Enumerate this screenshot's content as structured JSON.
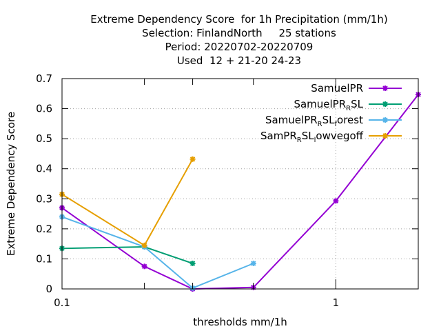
{
  "chart_data": {
    "type": "line",
    "title_lines": [
      "Extreme Dependency Score  for 1h Precipitation (mm/1h)",
      "Selection: FinlandNorth     25 stations",
      "Period: 20220702-20220709",
      "Used  12 + 21-20 24-23"
    ],
    "xlabel": "thresholds mm/1h",
    "ylabel": "Extreme Dependency Score",
    "x_scale": "log",
    "xlim": [
      0.1,
      2.0
    ],
    "ylim": [
      0,
      0.7
    ],
    "x_ticks": [
      {
        "value": 0.1,
        "label": "0.1"
      },
      {
        "value": 1,
        "label": "1"
      }
    ],
    "x_minor_ticks": [
      0.2,
      0.3,
      0.5,
      2.0
    ],
    "y_ticks": [
      {
        "value": 0,
        "label": "0"
      },
      {
        "value": 0.1,
        "label": "0.1"
      },
      {
        "value": 0.2,
        "label": "0.2"
      },
      {
        "value": 0.3,
        "label": "0.3"
      },
      {
        "value": 0.4,
        "label": "0.4"
      },
      {
        "value": 0.5,
        "label": "0.5"
      },
      {
        "value": 0.6,
        "label": "0.6"
      },
      {
        "value": 0.7,
        "label": "0.7"
      }
    ],
    "grid": true,
    "legend_position": "top-right",
    "series": [
      {
        "name": "SamuelPR",
        "label_parts": [
          [
            "SamuelPR",
            ""
          ]
        ],
        "color": "#9400d3",
        "x": [
          0.1,
          0.2,
          0.3,
          0.5,
          1.0,
          2.0
        ],
        "y": [
          0.27,
          0.075,
          0.0,
          0.005,
          0.293,
          0.647
        ]
      },
      {
        "name": "SamuelPR_RSL",
        "label_parts": [
          [
            "SamuelPR",
            ""
          ],
          [
            "R",
            "sub"
          ],
          [
            "SL",
            ""
          ]
        ],
        "color": "#009e73",
        "x": [
          0.1,
          0.2,
          0.3
        ],
        "y": [
          0.135,
          0.14,
          0.085
        ]
      },
      {
        "name": "SamuelPR_RSL_forest",
        "label_parts": [
          [
            "SamuelPR",
            ""
          ],
          [
            "R",
            "sub"
          ],
          [
            "SL",
            ""
          ],
          [
            "f",
            "sub"
          ],
          [
            "orest",
            ""
          ]
        ],
        "color": "#56b4e9",
        "x": [
          0.1,
          0.2,
          0.3,
          0.5
        ],
        "y": [
          0.24,
          0.14,
          0.003,
          0.085
        ]
      },
      {
        "name": "SamPR_RSL_lowvegoff",
        "label_parts": [
          [
            "SamPR",
            ""
          ],
          [
            "R",
            "sub"
          ],
          [
            "SL",
            ""
          ],
          [
            "l",
            "sub"
          ],
          [
            "owvegoff",
            ""
          ]
        ],
        "color": "#e69f00",
        "x": [
          0.1,
          0.2,
          0.3
        ],
        "y": [
          0.315,
          0.145,
          0.432
        ]
      }
    ]
  }
}
